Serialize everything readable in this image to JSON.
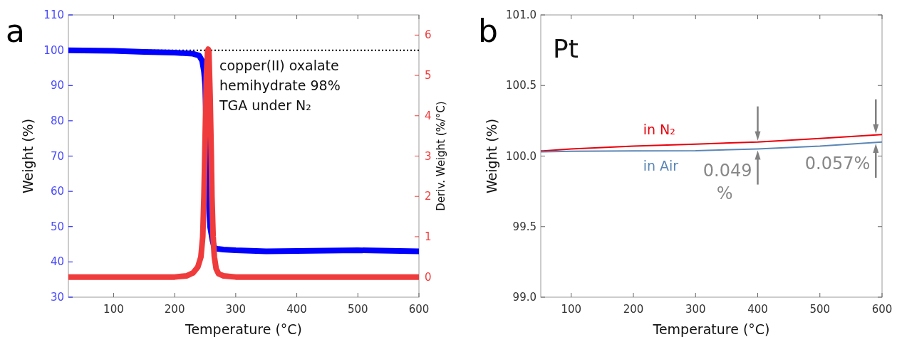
{
  "chart_data": [
    {
      "type": "line",
      "xlabel": "Temperature (°C)",
      "ylabel": "Weight (%)",
      "y2label": "Deriv. Weight (%/°C)",
      "xlim": [
        26,
        600
      ],
      "xticks": [
        100,
        200,
        300,
        400,
        500,
        600
      ],
      "ylim": [
        30,
        110
      ],
      "yticks": [
        30,
        40,
        50,
        60,
        70,
        80,
        90,
        100,
        110
      ],
      "y2lim": [
        -0.5,
        6.5
      ],
      "y2ticks": [
        0,
        1,
        2,
        3,
        4,
        5,
        6
      ],
      "series": [
        {
          "color": "#0000ff",
          "x": [
            26,
            100,
            150,
            200,
            230,
            240,
            245,
            248,
            250,
            253,
            255,
            258,
            262,
            265,
            270,
            280,
            300,
            350,
            400,
            500,
            600
          ],
          "values": [
            100,
            99.8,
            99.5,
            99.3,
            99,
            98.5,
            97,
            94,
            90,
            70,
            60,
            50,
            46,
            44,
            43.7,
            43.5,
            43.3,
            43,
            43.1,
            43.3,
            43
          ]
        },
        {
          "color": "#ef3b3b",
          "axis": "y2",
          "x": [
            26,
            100,
            200,
            220,
            230,
            238,
            243,
            246,
            248,
            250,
            252,
            254,
            255,
            256,
            258,
            260,
            261,
            263,
            265,
            268,
            272,
            280,
            300,
            400,
            600
          ],
          "values": [
            0,
            0,
            0,
            0.03,
            0.1,
            0.25,
            0.5,
            1,
            2,
            3.5,
            5,
            5.6,
            5.65,
            5.6,
            4.5,
            3,
            2,
            1,
            0.5,
            0.2,
            0.08,
            0.03,
            0,
            0,
            0
          ]
        }
      ],
      "ref_lines": [
        {
          "axis": "y",
          "value": 100,
          "color": "#000000",
          "line_style": "dotted"
        }
      ],
      "annotations": [
        "a",
        "copper(II) oxalate\nhemihydrate 98%\nTGA under N₂"
      ]
    },
    {
      "type": "line",
      "xlabel": "Temperature (°C)",
      "ylabel": "Weight (%)",
      "xlim": [
        51,
        600
      ],
      "xticks": [
        100,
        200,
        300,
        400,
        500,
        600
      ],
      "ylim": [
        99,
        101
      ],
      "yticks": [
        {
          "value": 99,
          "label": "99.0"
        },
        99.5,
        {
          "value": 100,
          "label": "100.0"
        },
        100.5,
        {
          "value": 101,
          "label": "101.0"
        }
      ],
      "series": [
        {
          "name": "in N₂",
          "color": "#e8000b",
          "x": [
            51,
            100,
            200,
            300,
            400,
            500,
            600
          ],
          "values": [
            100.036,
            100.05,
            100.07,
            100.085,
            100.1,
            100.125,
            100.153
          ]
        },
        {
          "name": "in Air",
          "color": "#5b86b5",
          "x": [
            51,
            100,
            200,
            300,
            400,
            500,
            600
          ],
          "values": [
            100.03,
            100.034,
            100.036,
            100.038,
            100.05,
            100.07,
            100.1
          ]
        }
      ],
      "annotations": [
        "b",
        "Pt",
        {
          "text": "0.049 %",
          "x": 400,
          "y": 100.05
        },
        {
          "text": "0.057%",
          "x": 590,
          "y": 100.098
        }
      ]
    }
  ]
}
